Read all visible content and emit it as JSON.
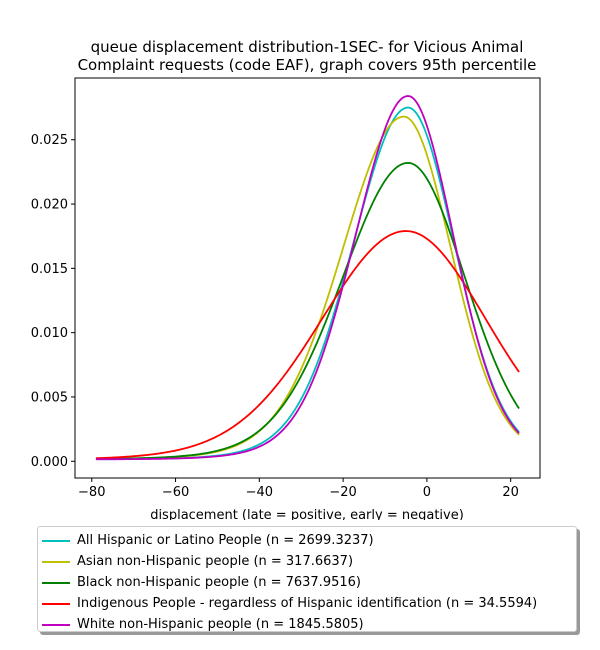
{
  "chart_data": {
    "type": "line",
    "title_line1": "queue displacement distribution-1SEC-  for Vicious Animal",
    "title_line2": "Complaint  requests (code EAF), graph covers 95th percentile",
    "xlabel": "displacement (late = positive, early = negative)",
    "ylabel": "",
    "xlim": [
      -84,
      27
    ],
    "ylim": [
      -0.0013,
      0.0298
    ],
    "xticks": [
      -80,
      -60,
      -40,
      -20,
      0,
      20
    ],
    "yticks": [
      0.0,
      0.005,
      0.01,
      0.015,
      0.02,
      0.025
    ],
    "ytick_labels": [
      "0.000",
      "0.005",
      "0.010",
      "0.015",
      "0.020",
      "0.025"
    ],
    "x_range": [
      -79,
      22
    ],
    "grid": false,
    "legend_position": "below plot",
    "series": [
      {
        "name": "All Hispanic or Latino People (n = 2699.3237)",
        "color": "#00bfbf",
        "peak_x": -4.5,
        "peak_y": 0.0275,
        "sigma_left": 13.0,
        "sigma_right": 11.0,
        "tail": 0.00015
      },
      {
        "name": "Asian non-Hispanic people (n = 317.6637)",
        "color": "#bfbf00",
        "peak_x": -5.5,
        "peak_y": 0.0268,
        "sigma_left": 14.5,
        "sigma_right": 11.2,
        "tail": 0.00015
      },
      {
        "name": "Black non-Hispanic people (n = 7637.9516)",
        "color": "#008000",
        "peak_x": -4.5,
        "peak_y": 0.0232,
        "sigma_left": 15.5,
        "sigma_right": 13.5,
        "tail": 0.00015
      },
      {
        "name": "Indigenous People - regardless of Hispanic identification (n = 34.5594)",
        "color": "#ff0000",
        "peak_x": -5.0,
        "peak_y": 0.0179,
        "sigma_left": 20.0,
        "sigma_right": 19.0,
        "tail": 0.0001
      },
      {
        "name": "White non-Hispanic people (n = 1845.5805)",
        "color": "#bf00bf",
        "peak_x": -4.5,
        "peak_y": 0.0284,
        "sigma_left": 12.5,
        "sigma_right": 10.8,
        "tail": 0.00015
      }
    ]
  }
}
